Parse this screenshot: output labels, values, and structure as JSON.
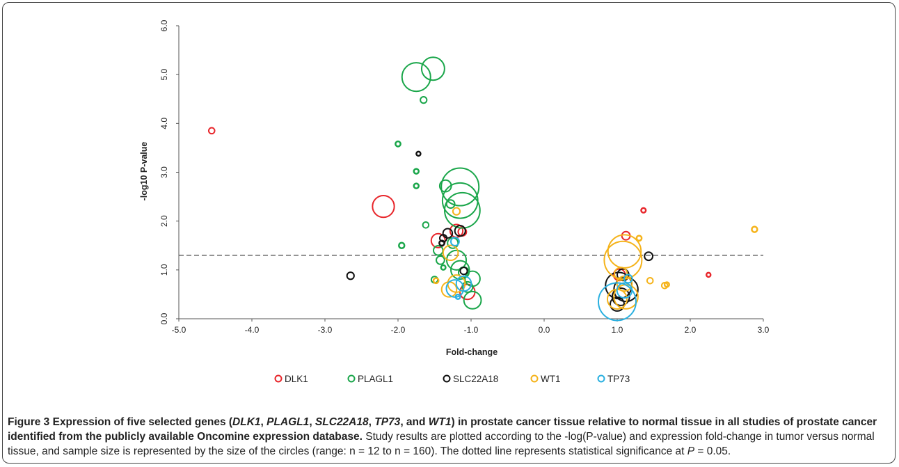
{
  "chart_data": {
    "type": "scatter",
    "xlabel": "Fold-change",
    "ylabel": "-log10 P-value",
    "xlim": [
      -5.0,
      3.0
    ],
    "ylim": [
      0.0,
      6.0
    ],
    "x_ticks": [
      "-5.0",
      "-4.0",
      "-3.0",
      "-2.0",
      "-1.0",
      "0.0",
      "1.0",
      "2.0",
      "3.0"
    ],
    "y_ticks": [
      "0.0",
      "1.0",
      "2.0",
      "3.0",
      "4.0",
      "5.0",
      "6.0"
    ],
    "significance_line": 1.3,
    "grid": false,
    "legend_position": "bottom",
    "series": [
      {
        "name": "DLK1",
        "color": "#e8262b",
        "points": [
          {
            "x": -4.55,
            "y": 3.85,
            "n": 20
          },
          {
            "x": -2.2,
            "y": 2.3,
            "n": 90
          },
          {
            "x": -1.45,
            "y": 1.6,
            "n": 55
          },
          {
            "x": -1.2,
            "y": 1.8,
            "n": 50
          },
          {
            "x": -1.12,
            "y": 1.78,
            "n": 30
          },
          {
            "x": -1.05,
            "y": 0.55,
            "n": 60
          },
          {
            "x": 1.12,
            "y": 1.7,
            "n": 30
          },
          {
            "x": 1.36,
            "y": 2.22,
            "n": 14
          },
          {
            "x": 1.03,
            "y": 0.9,
            "n": 45
          },
          {
            "x": 2.25,
            "y": 0.9,
            "n": 12
          }
        ]
      },
      {
        "name": "PLAGL1",
        "color": "#1aa64a",
        "points": [
          {
            "x": -1.75,
            "y": 4.95,
            "n": 120
          },
          {
            "x": -1.52,
            "y": 5.12,
            "n": 95
          },
          {
            "x": -1.65,
            "y": 4.48,
            "n": 22
          },
          {
            "x": -2.0,
            "y": 3.58,
            "n": 16
          },
          {
            "x": -1.75,
            "y": 3.02,
            "n": 15
          },
          {
            "x": -1.75,
            "y": 2.72,
            "n": 15
          },
          {
            "x": -1.35,
            "y": 2.72,
            "n": 45
          },
          {
            "x": -1.15,
            "y": 2.7,
            "n": 160
          },
          {
            "x": -1.15,
            "y": 2.42,
            "n": 150
          },
          {
            "x": -1.12,
            "y": 2.22,
            "n": 150
          },
          {
            "x": -1.28,
            "y": 2.35,
            "n": 30
          },
          {
            "x": -1.62,
            "y": 1.92,
            "n": 20
          },
          {
            "x": -1.95,
            "y": 1.5,
            "n": 18
          },
          {
            "x": -1.45,
            "y": 1.4,
            "n": 35
          },
          {
            "x": -1.25,
            "y": 1.55,
            "n": 40
          },
          {
            "x": -1.38,
            "y": 1.05,
            "n": 14
          },
          {
            "x": -1.2,
            "y": 1.2,
            "n": 80
          },
          {
            "x": -1.15,
            "y": 1.0,
            "n": 75
          },
          {
            "x": -1.1,
            "y": 0.95,
            "n": 40
          },
          {
            "x": -1.42,
            "y": 1.2,
            "n": 30
          },
          {
            "x": -1.5,
            "y": 0.8,
            "n": 22
          },
          {
            "x": -0.98,
            "y": 0.82,
            "n": 60
          },
          {
            "x": -0.98,
            "y": 0.38,
            "n": 70
          },
          {
            "x": -1.05,
            "y": 0.65,
            "n": 40
          }
        ]
      },
      {
        "name": "SLC22A18",
        "color": "#111111",
        "points": [
          {
            "x": -2.65,
            "y": 0.88,
            "n": 25
          },
          {
            "x": -1.72,
            "y": 3.38,
            "n": 12
          },
          {
            "x": -1.32,
            "y": 1.75,
            "n": 35
          },
          {
            "x": -1.15,
            "y": 1.8,
            "n": 40
          },
          {
            "x": -1.38,
            "y": 1.65,
            "n": 25
          },
          {
            "x": -1.4,
            "y": 1.55,
            "n": 16
          },
          {
            "x": -1.1,
            "y": 0.98,
            "n": 25
          },
          {
            "x": 1.43,
            "y": 1.28,
            "n": 30
          },
          {
            "x": 1.02,
            "y": 0.68,
            "n": 110
          },
          {
            "x": 1.12,
            "y": 0.6,
            "n": 100
          },
          {
            "x": 1.05,
            "y": 0.45,
            "n": 70
          },
          {
            "x": 1.0,
            "y": 0.3,
            "n": 55
          },
          {
            "x": 1.08,
            "y": 0.9,
            "n": 45
          }
        ]
      },
      {
        "name": "WT1",
        "color": "#f5b31a",
        "points": [
          {
            "x": -1.2,
            "y": 2.2,
            "n": 25
          },
          {
            "x": -1.28,
            "y": 1.35,
            "n": 60
          },
          {
            "x": -1.2,
            "y": 0.72,
            "n": 70
          },
          {
            "x": -1.3,
            "y": 0.6,
            "n": 60
          },
          {
            "x": -1.48,
            "y": 0.78,
            "n": 16
          },
          {
            "x": 1.1,
            "y": 1.38,
            "n": 140
          },
          {
            "x": 1.08,
            "y": 1.2,
            "n": 160
          },
          {
            "x": 1.05,
            "y": 0.92,
            "n": 50
          },
          {
            "x": 1.1,
            "y": 0.72,
            "n": 60
          },
          {
            "x": 1.12,
            "y": 0.45,
            "n": 100
          },
          {
            "x": 1.0,
            "y": 0.4,
            "n": 80
          },
          {
            "x": 1.3,
            "y": 1.65,
            "n": 16
          },
          {
            "x": 1.45,
            "y": 0.78,
            "n": 20
          },
          {
            "x": 1.65,
            "y": 0.68,
            "n": 20
          },
          {
            "x": 1.68,
            "y": 0.7,
            "n": 14
          },
          {
            "x": 2.88,
            "y": 1.83,
            "n": 18
          }
        ]
      },
      {
        "name": "TP73",
        "color": "#2ab0e0",
        "points": [
          {
            "x": -1.22,
            "y": 1.58,
            "n": 30
          },
          {
            "x": -1.1,
            "y": 0.72,
            "n": 60
          },
          {
            "x": -1.22,
            "y": 0.62,
            "n": 70
          },
          {
            "x": -1.18,
            "y": 0.45,
            "n": 14
          },
          {
            "x": 1.0,
            "y": 0.35,
            "n": 160
          },
          {
            "x": 1.1,
            "y": 0.58,
            "n": 60
          },
          {
            "x": 1.15,
            "y": 0.82,
            "n": 30
          }
        ]
      }
    ]
  },
  "caption": {
    "figure_label": "Figure 3",
    "bold_parts": [
      " Expression of five selected genes (",
      ", ",
      ", ",
      ", ",
      ", and ",
      ") in prostate cancer tissue relative to normal tissue in all studies of prostate cancer identified from the publicly available Oncomine expression database."
    ],
    "genes": [
      "DLK1",
      "PLAGL1",
      "SLC22A18",
      "TP73",
      "WT1"
    ],
    "body_before_p": " Study results are plotted according to the -log(P-value) and expression fold-change in tumor versus normal tissue, and sample size is represented by the size of the circles (range: n = 12 to n = 160). The dotted line represents statistical significance at ",
    "p_symbol": "P",
    "body_after_p": " = 0.05."
  }
}
